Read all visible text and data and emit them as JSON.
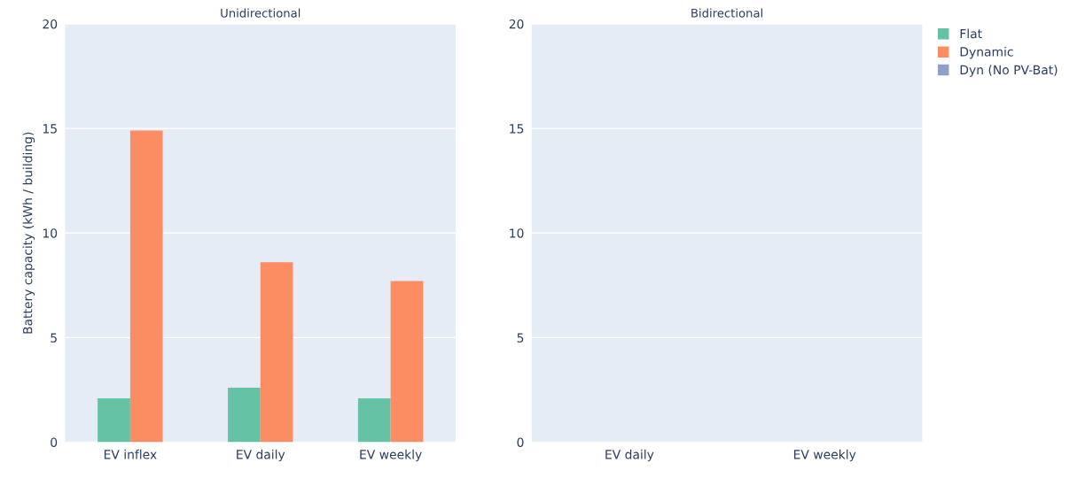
{
  "chart_data": [
    {
      "type": "bar",
      "title": "Unidirectional",
      "ylabel": "Battery capacity (kWh / building)",
      "categories": [
        "EV inflex",
        "EV daily",
        "EV weekly"
      ],
      "series": [
        {
          "color": "#66c2a5",
          "values": [
            2.1,
            2.6,
            2.1
          ]
        },
        {
          "color": "#fc8d62",
          "values": [
            14.9,
            8.6,
            7.7
          ]
        }
      ],
      "ylim": [
        0,
        20
      ],
      "yticks": [
        0,
        5,
        10,
        15,
        20
      ],
      "grid": "y"
    },
    {
      "type": "bar",
      "title": "Bidirectional",
      "categories": [
        "EV daily",
        "EV weekly"
      ],
      "series": [
        {
          "name": "Flat",
          "color": "#66c2a5",
          "values": [
            null,
            null
          ]
        },
        {
          "name": "Dynamic",
          "color": "#fc8d62",
          "values": [
            null,
            null
          ]
        },
        {
          "name": "Dyn (No PV-Bat)",
          "color": "#8da0cb",
          "values": [
            null,
            null
          ]
        }
      ],
      "ylim": [
        0,
        20
      ],
      "yticks": [
        0,
        5,
        10,
        15,
        20
      ],
      "grid": "y",
      "legend": "top right"
    }
  ]
}
